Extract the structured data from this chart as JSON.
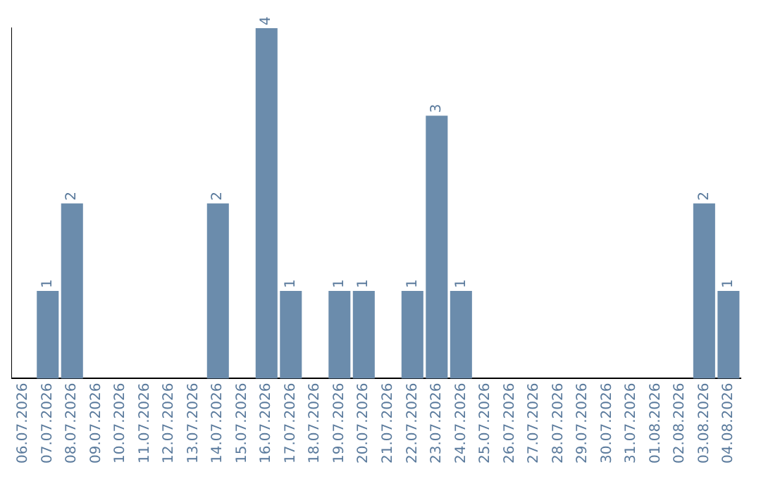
{
  "chart_data": {
    "type": "bar",
    "categories": [
      "06.07.2026",
      "07.07.2026",
      "08.07.2026",
      "09.07.2026",
      "10.07.2026",
      "11.07.2026",
      "12.07.2026",
      "13.07.2026",
      "14.07.2026",
      "15.07.2026",
      "16.07.2026",
      "17.07.2026",
      "18.07.2026",
      "19.07.2026",
      "20.07.2026",
      "21.07.2026",
      "22.07.2026",
      "23.07.2026",
      "24.07.2026",
      "25.07.2026",
      "26.07.2026",
      "27.07.2026",
      "28.07.2026",
      "29.07.2026",
      "30.07.2026",
      "31.07.2026",
      "01.08.2026",
      "02.08.2026",
      "03.08.2026",
      "04.08.2026"
    ],
    "values": [
      0,
      1,
      2,
      0,
      0,
      0,
      0,
      0,
      2,
      0,
      4,
      1,
      0,
      1,
      1,
      0,
      1,
      3,
      1,
      0,
      0,
      0,
      0,
      0,
      0,
      0,
      0,
      0,
      2,
      1
    ],
    "value_labels": [
      null,
      "1",
      "2",
      null,
      null,
      null,
      null,
      null,
      "2",
      null,
      "4",
      "1",
      null,
      "1",
      "1",
      null,
      "1",
      "3",
      "1",
      null,
      null,
      null,
      null,
      null,
      null,
      null,
      null,
      null,
      "2",
      "1"
    ],
    "color": "#6b8cac",
    "grid": false,
    "legend": false,
    "tick_labels": "x"
  }
}
